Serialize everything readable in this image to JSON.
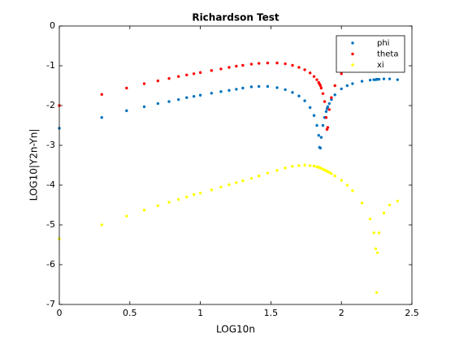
{
  "chart_data": {
    "type": "scatter",
    "title": "Richardson Test",
    "xlabel": "LOG10n",
    "ylabel": "LOG10|Y2n-Yn|",
    "x": [
      0,
      0.301,
      0.477,
      0.602,
      0.699,
      0.778,
      0.845,
      0.903,
      0.954,
      1,
      1.079,
      1.146,
      1.204,
      1.255,
      1.301,
      1.362,
      1.415,
      1.477,
      1.544,
      1.602,
      1.653,
      1.699,
      1.74,
      1.778,
      1.806,
      1.826,
      1.839,
      1.845,
      1.851,
      1.857,
      1.869,
      1.881,
      1.892,
      1.898,
      1.903,
      1.914,
      1.929,
      1.954,
      2,
      2.041,
      2.079,
      2.146,
      2.204,
      2.23,
      2.243,
      2.25,
      2.255,
      2.267,
      2.301,
      2.342,
      2.398
    ],
    "series": [
      {
        "name": "phi",
        "color": "#0072bd",
        "values": [
          -2.57,
          -2.3,
          -2.13,
          -2.03,
          -1.95,
          -1.9,
          -1.85,
          -1.8,
          -1.77,
          -1.74,
          -1.69,
          -1.65,
          -1.62,
          -1.59,
          -1.56,
          -1.53,
          -1.52,
          -1.52,
          -1.55,
          -1.6,
          -1.67,
          -1.76,
          -1.88,
          -2.05,
          -2.25,
          -2.5,
          -2.75,
          -3.05,
          -3.07,
          -2.8,
          -2.5,
          -2.3,
          -2.15,
          -2.08,
          -2.03,
          -1.95,
          -1.85,
          -1.73,
          -1.58,
          -1.5,
          -1.45,
          -1.39,
          -1.36,
          -1.35,
          -1.35,
          -1.34,
          -1.34,
          -1.34,
          -1.33,
          -1.33,
          -1.35
        ]
      },
      {
        "name": "theta",
        "color": "#ff0000",
        "values": [
          -2.0,
          -1.72,
          -1.56,
          -1.45,
          -1.38,
          -1.32,
          -1.27,
          -1.23,
          -1.2,
          -1.17,
          -1.12,
          -1.08,
          -1.04,
          -1.01,
          -0.99,
          -0.96,
          -0.94,
          -0.93,
          -0.93,
          -0.95,
          -0.99,
          -1.04,
          -1.1,
          -1.18,
          -1.27,
          -1.35,
          -1.42,
          -1.46,
          -1.5,
          -1.56,
          -1.7,
          -1.9,
          -2.3,
          -2.6,
          -2.55,
          -2.1,
          -1.8,
          -1.5,
          -1.2,
          -1.0,
          null,
          null,
          null,
          null,
          null,
          null,
          null,
          null,
          null,
          null,
          null
        ]
      },
      {
        "name": "xi",
        "color": "#ffff00",
        "values": [
          -5.35,
          -5.0,
          -4.78,
          -4.63,
          -4.52,
          -4.43,
          -4.36,
          -4.3,
          -4.24,
          -4.2,
          -4.12,
          -4.05,
          -3.99,
          -3.94,
          -3.89,
          -3.83,
          -3.77,
          -3.7,
          -3.63,
          -3.57,
          -3.53,
          -3.51,
          -3.5,
          -3.51,
          -3.52,
          -3.54,
          -3.55,
          -3.56,
          -3.57,
          -3.58,
          -3.6,
          -3.62,
          -3.64,
          -3.65,
          -3.66,
          -3.68,
          -3.71,
          -3.77,
          -3.88,
          -4.0,
          -4.14,
          -4.45,
          -4.85,
          -5.2,
          -5.6,
          -6.7,
          -5.7,
          -5.2,
          -4.7,
          -4.5,
          -4.4
        ]
      }
    ],
    "xlim": [
      0,
      2.5
    ],
    "xticks": [
      0,
      0.5,
      1,
      1.5,
      2,
      2.5
    ],
    "ylim": [
      -7,
      0
    ],
    "yticks": [
      -7,
      -6,
      -5,
      -4,
      -3,
      -2,
      -1,
      0
    ],
    "legend": "top-right",
    "grid": false
  }
}
